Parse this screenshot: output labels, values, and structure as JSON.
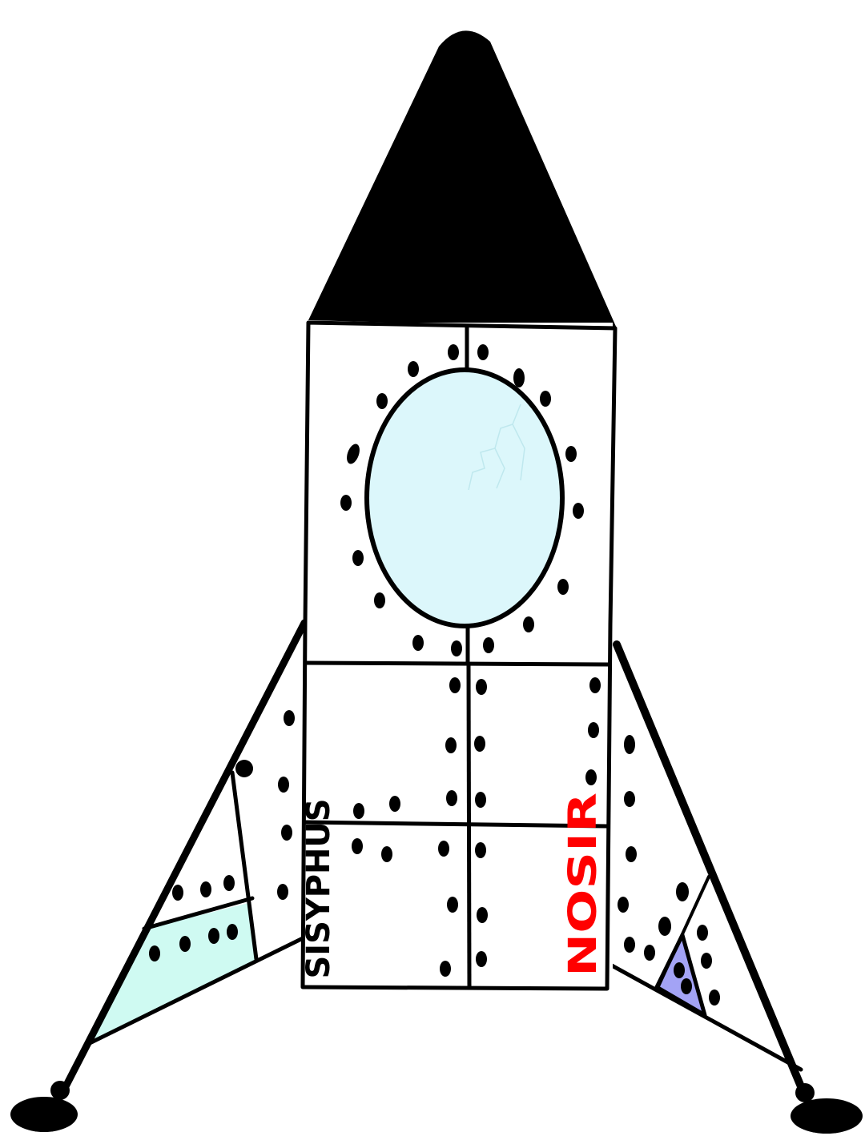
{
  "labels": {
    "left": "SISYPHUS",
    "right": "NOSIR"
  },
  "colors": {
    "outline": "#000000",
    "nose_cone": "#000000",
    "body": "#ffffff",
    "porthole": "#dcf7fb",
    "left_panel": "#cffaf2",
    "right_panel": "#a3a3f5",
    "right_label": "#ff0000",
    "left_label": "#000000"
  }
}
